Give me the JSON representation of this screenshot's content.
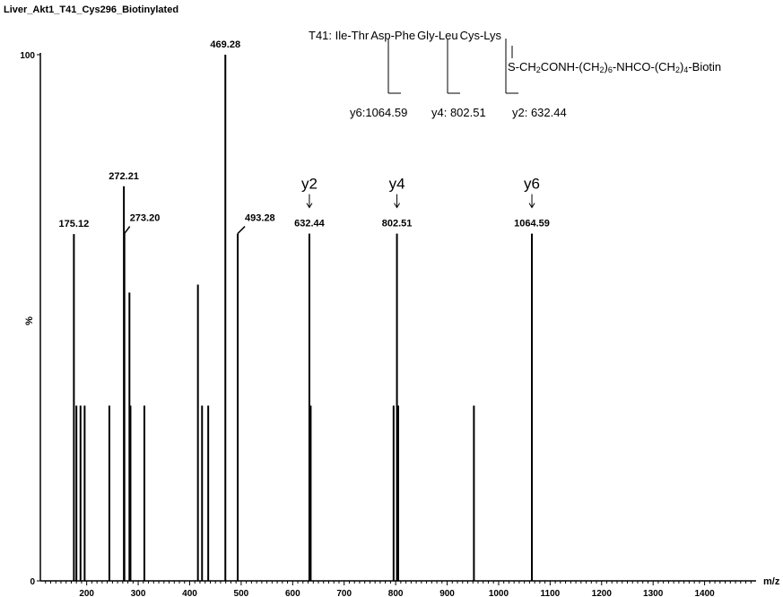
{
  "chart_data": {
    "type": "bar",
    "title": "Liver_Akt1_T41_Cys296_Biotinylated",
    "xlabel": "m/z",
    "ylabel": "%",
    "xlim": [
      110,
      1500
    ],
    "ylim": [
      0,
      100
    ],
    "x_ticks": [
      200,
      300,
      400,
      500,
      600,
      700,
      800,
      900,
      1000,
      1100,
      1200,
      1300,
      1400
    ],
    "y_ticks": [
      0,
      100
    ],
    "peaks": [
      {
        "mz": 175.12,
        "intensity": 65.9,
        "label": "175.12"
      },
      {
        "mz": 180,
        "intensity": 33.3
      },
      {
        "mz": 188,
        "intensity": 33.3
      },
      {
        "mz": 196,
        "intensity": 33.3
      },
      {
        "mz": 244,
        "intensity": 33.3
      },
      {
        "mz": 272.21,
        "intensity": 75.0,
        "label": "272.21"
      },
      {
        "mz": 273.2,
        "intensity": 66.0,
        "label": "273.20"
      },
      {
        "mz": 283,
        "intensity": 54.8
      },
      {
        "mz": 285,
        "intensity": 33.3
      },
      {
        "mz": 312,
        "intensity": 33.3
      },
      {
        "mz": 416,
        "intensity": 56.3
      },
      {
        "mz": 424,
        "intensity": 33.3
      },
      {
        "mz": 436,
        "intensity": 33.3
      },
      {
        "mz": 469.28,
        "intensity": 100,
        "label": "469.28"
      },
      {
        "mz": 493.28,
        "intensity": 66.0,
        "label": "493.28"
      },
      {
        "mz": 632.44,
        "intensity": 66.0,
        "label": "632.44",
        "ion": "y2"
      },
      {
        "mz": 635,
        "intensity": 33.3
      },
      {
        "mz": 796,
        "intensity": 33.3
      },
      {
        "mz": 802.51,
        "intensity": 66.0,
        "label": "802.51",
        "ion": "y4"
      },
      {
        "mz": 805,
        "intensity": 33.3
      },
      {
        "mz": 952,
        "intensity": 33.3
      },
      {
        "mz": 1064.59,
        "intensity": 66.0,
        "label": "1064.59",
        "ion": "y6"
      }
    ],
    "annotation": {
      "peptide_prefix": "T41: Ile-Thr",
      "residues": [
        "Asp-Phe",
        "Gly-Leu",
        "Cys-Lys"
      ],
      "modification_parts": [
        "S-CH",
        "2",
        "CONH-(CH",
        "2",
        ")",
        "6",
        "-NHCO-(CH",
        "2",
        ")",
        "4",
        "-Biotin"
      ],
      "fragments": [
        "y6:1064.59",
        "y4: 802.51",
        "y2: 632.44"
      ]
    }
  }
}
